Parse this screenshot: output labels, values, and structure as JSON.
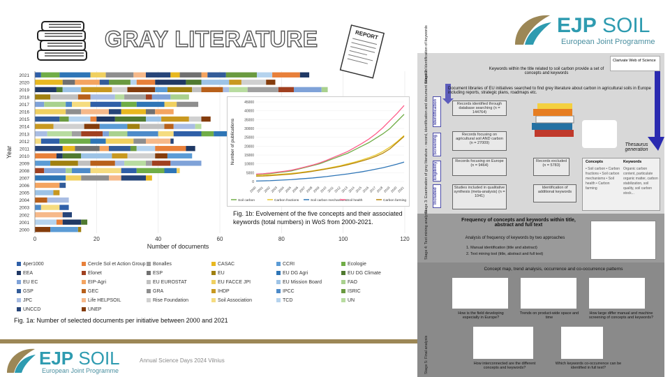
{
  "slide": {
    "title": "GRAY LITERATURE",
    "report_label": "REPORT",
    "brand": {
      "name_bold": "EJP",
      "name_light": " SOIL",
      "subtitle": "European Joint Programme"
    },
    "footer_event": "Annual Science Days 2024 Vilnius"
  },
  "colors": {
    "brand_teal": "#2e9bb0",
    "brand_gold": "#9c8756",
    "flow_bg": "#8c8c8c",
    "blue_arrow": "#2a2ab0"
  },
  "chart_data": [
    {
      "type": "bar",
      "orientation": "horizontal-stacked",
      "ylabel": "Year",
      "xlabel": "Number of documents",
      "xlim": [
        0,
        120
      ],
      "x_ticks": [
        "0",
        "20",
        "40",
        "60",
        "80",
        "100",
        "120"
      ],
      "categories": [
        "2021",
        "2020",
        "2019",
        "2018",
        "2017",
        "2016",
        "2015",
        "2014",
        "2013",
        "2012",
        "2011",
        "2010",
        "2009",
        "2008",
        "2007",
        "2006",
        "2005",
        "2004",
        "2003",
        "2002",
        "2001",
        "2000"
      ],
      "totals": [
        89,
        78,
        95,
        50,
        53,
        45,
        57,
        54,
        63,
        45,
        52,
        51,
        54,
        47,
        38,
        10,
        8,
        11,
        11,
        12,
        17,
        15
      ],
      "caption": "Fig. 1a: Number of selected documents per initiative between 2000 and 2021",
      "legend": [
        {
          "name": "4per1000",
          "color": "#2f5fa8"
        },
        {
          "name": "Cercle Sol et Action Group",
          "color": "#e8803a"
        },
        {
          "name": "Bonalles",
          "color": "#a0a0a0"
        },
        {
          "name": "CASAC",
          "color": "#e8b820"
        },
        {
          "name": "CCRI",
          "color": "#5b9bd5"
        },
        {
          "name": "Ecologie",
          "color": "#70ad47"
        },
        {
          "name": "EEA",
          "color": "#1f3864"
        },
        {
          "name": "Elonet",
          "color": "#a04020"
        },
        {
          "name": "ESP",
          "color": "#707070"
        },
        {
          "name": "EU",
          "color": "#a08010"
        },
        {
          "name": "EU DG Agri",
          "color": "#2e75b6"
        },
        {
          "name": "EU DG Climate",
          "color": "#507a30"
        },
        {
          "name": "EU EC",
          "color": "#7fa2d8"
        },
        {
          "name": "EIP-Agri",
          "color": "#f4a460"
        },
        {
          "name": "EU EUROSTAT",
          "color": "#c0c0c0"
        },
        {
          "name": "EU FACCE JPI",
          "color": "#f0d060"
        },
        {
          "name": "EU Mission Board",
          "color": "#9dc3e6"
        },
        {
          "name": "FAO",
          "color": "#a9d18e"
        },
        {
          "name": "GSP",
          "color": "#335c99"
        },
        {
          "name": "GEC",
          "color": "#b8601a"
        },
        {
          "name": "GRA",
          "color": "#8e8e8e"
        },
        {
          "name": "IHDP",
          "color": "#c89820"
        },
        {
          "name": "IPCC",
          "color": "#4d8ac9"
        },
        {
          "name": "ISRIC",
          "color": "#6a9a40"
        },
        {
          "name": "JPC",
          "color": "#a9bde3"
        },
        {
          "name": "Life HELPSOIL",
          "color": "#f6b98a"
        },
        {
          "name": "Rise Foundation",
          "color": "#d0d0d0"
        },
        {
          "name": "Soil Association",
          "color": "#f5dc80"
        },
        {
          "name": "TCD",
          "color": "#b5d3ee"
        },
        {
          "name": "UN",
          "color": "#b8dca0"
        },
        {
          "name": "UNCCD",
          "color": "#264478"
        },
        {
          "name": "UNEP",
          "color": "#843c0c"
        }
      ]
    },
    {
      "type": "line",
      "ylabel": "Number of publications",
      "ylim": [
        0,
        45000
      ],
      "y_ticks": [
        "0",
        "5000",
        "10000",
        "15000",
        "20000",
        "25000",
        "30000",
        "35000",
        "40000",
        "45000"
      ],
      "x": [
        "2000",
        "2001",
        "2002",
        "2003",
        "2004",
        "2005",
        "2006",
        "2007",
        "2008",
        "2009",
        "2010",
        "2011",
        "2012",
        "2013",
        "2014",
        "2015",
        "2016",
        "2017",
        "2018",
        "2019",
        "2020",
        "2021"
      ],
      "series": [
        {
          "name": "Soil carbon",
          "color": "#70ad47",
          "values": [
            4000,
            4200,
            4500,
            5000,
            5500,
            6000,
            7000,
            8000,
            9000,
            10000,
            11500,
            13000,
            14500,
            16000,
            18000,
            20000,
            22000,
            24500,
            27000,
            30000,
            34000,
            38000
          ]
        },
        {
          "name": "Carbon fractions",
          "color": "#e8c830",
          "values": [
            3500,
            3600,
            3800,
            4000,
            4300,
            4600,
            5000,
            5500,
            6000,
            6700,
            7400,
            8200,
            9000,
            10000,
            11000,
            12200,
            13500,
            15000,
            17000,
            19500,
            22500,
            26000
          ]
        },
        {
          "name": "Soil carbon mechanisms",
          "color": "#2e75b6",
          "values": [
            300,
            400,
            500,
            700,
            900,
            1100,
            1400,
            1700,
            2000,
            2400,
            2800,
            3300,
            3800,
            4300,
            4900,
            5500,
            6200,
            7000,
            7800,
            8800,
            9800,
            11000
          ]
        },
        {
          "name": "Soil health",
          "color": "#ff5c8a",
          "values": [
            4200,
            4400,
            4800,
            5300,
            5800,
            6400,
            7300,
            8300,
            9300,
            10500,
            12000,
            13700,
            15300,
            17000,
            19200,
            21500,
            24000,
            27000,
            30500,
            34500,
            38500,
            43000
          ]
        },
        {
          "name": "Carbon farming",
          "color": "#b8860b",
          "values": [
            3000,
            3100,
            3300,
            3600,
            3900,
            4200,
            4700,
            5200,
            5800,
            6400,
            7100,
            7800,
            8600,
            9500,
            10500,
            11600,
            12800,
            14200,
            16000,
            18500,
            22000,
            25500
          ]
        }
      ],
      "caption": "Fig. 1b: Evolvement of the five concepts and their associated keywords (total numbers) in WoS from 2000-2021."
    }
  ],
  "flow": {
    "wos_label": "Clarivate Web of Science",
    "stage2": "Stage 2: Identification of keywords",
    "intro": "Keywords within the title related to soil carbon provide a set of concepts and keywords",
    "desc": "Document libraries of EU initiatives searched to find grey literature about carbon in agricultural soils in Europe including reports, strategic plans, roadmaps etc.",
    "stage3": "Stage 3: Examination of grey literature - record, identification and document selection",
    "tabs": [
      "Identification",
      "Screening",
      "Eligibility",
      "Included"
    ],
    "boxes": [
      "Records identified through database searching (n = 144764)",
      "Records focusing on agricultural soil AND carbon (n = 27009)",
      "Records focusing on Europe (n = 9464)",
      "Records excluded (n = 5783)",
      "Studies included in qualitative synthesis (meta-analysis) (n = 1041)",
      "Identification of additional keywords"
    ],
    "thesaurus": "Thesaurus generation",
    "concepts_head": "Concepts",
    "keywords_head": "Keywords",
    "concepts_list": "• Soil carbon • Carbon fractions • Soil carbon mechanisms • Soil health • Carbon farming",
    "keywords_list": "Organic carbon content, particulate organic matter, carbon stabilization, soil quality, soil carbon stock...",
    "stage4": "Stage 4: Text mining analysis",
    "freq_title": "Frequency of concepts and keywords within title, abstract and full text",
    "approaches": "Analysis of frequency of keywords by two approaches",
    "approach1": "1. Manual identification (title and abstract)",
    "approach2": "2. Text mining tool (title, abstract and full text)",
    "concept_map": "Concept map, trend analysis, occurrence and co-occurrence patterns",
    "q1": "How is the field developing especially in Europe?",
    "q2": "Trends on product-wide space and time",
    "q3": "How large differ manual and machine screening of concepts and keywords?",
    "stage5": "Stage 5: Final analysis",
    "q4": "How interconnected are the different concepts and keywords?",
    "q5": "Which keywords co-occurrence can be identified in full text?"
  }
}
